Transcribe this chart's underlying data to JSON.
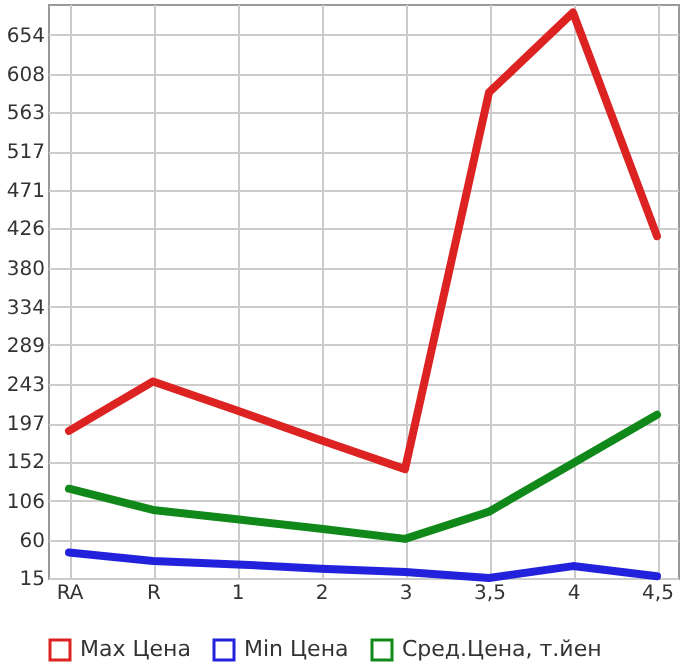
{
  "chart_data": {
    "type": "line",
    "categories": [
      "RA",
      "R",
      "1",
      "2",
      "3",
      "3,5",
      "4",
      "4,5"
    ],
    "series": [
      {
        "name": "Max Цена",
        "color": "#dd2222",
        "values": [
          188,
          246,
          212,
          177,
          143,
          586,
          680,
          417
        ]
      },
      {
        "name": "Min Цена",
        "color": "#2222dd",
        "values": [
          45,
          35,
          31,
          26,
          22,
          15,
          29,
          17
        ]
      },
      {
        "name": "Сред.Цена, т.йен",
        "color": "#11881a",
        "values": [
          120,
          95,
          84,
          73,
          61,
          93,
          150,
          207
        ]
      }
    ],
    "ylim": [
      15,
      690
    ],
    "yticks": [
      15,
      60,
      106,
      152,
      197,
      243,
      289,
      334,
      380,
      426,
      471,
      517,
      563,
      608,
      654
    ],
    "grid": true,
    "legend": "bottom",
    "line_style": "solid",
    "marker": "none"
  }
}
